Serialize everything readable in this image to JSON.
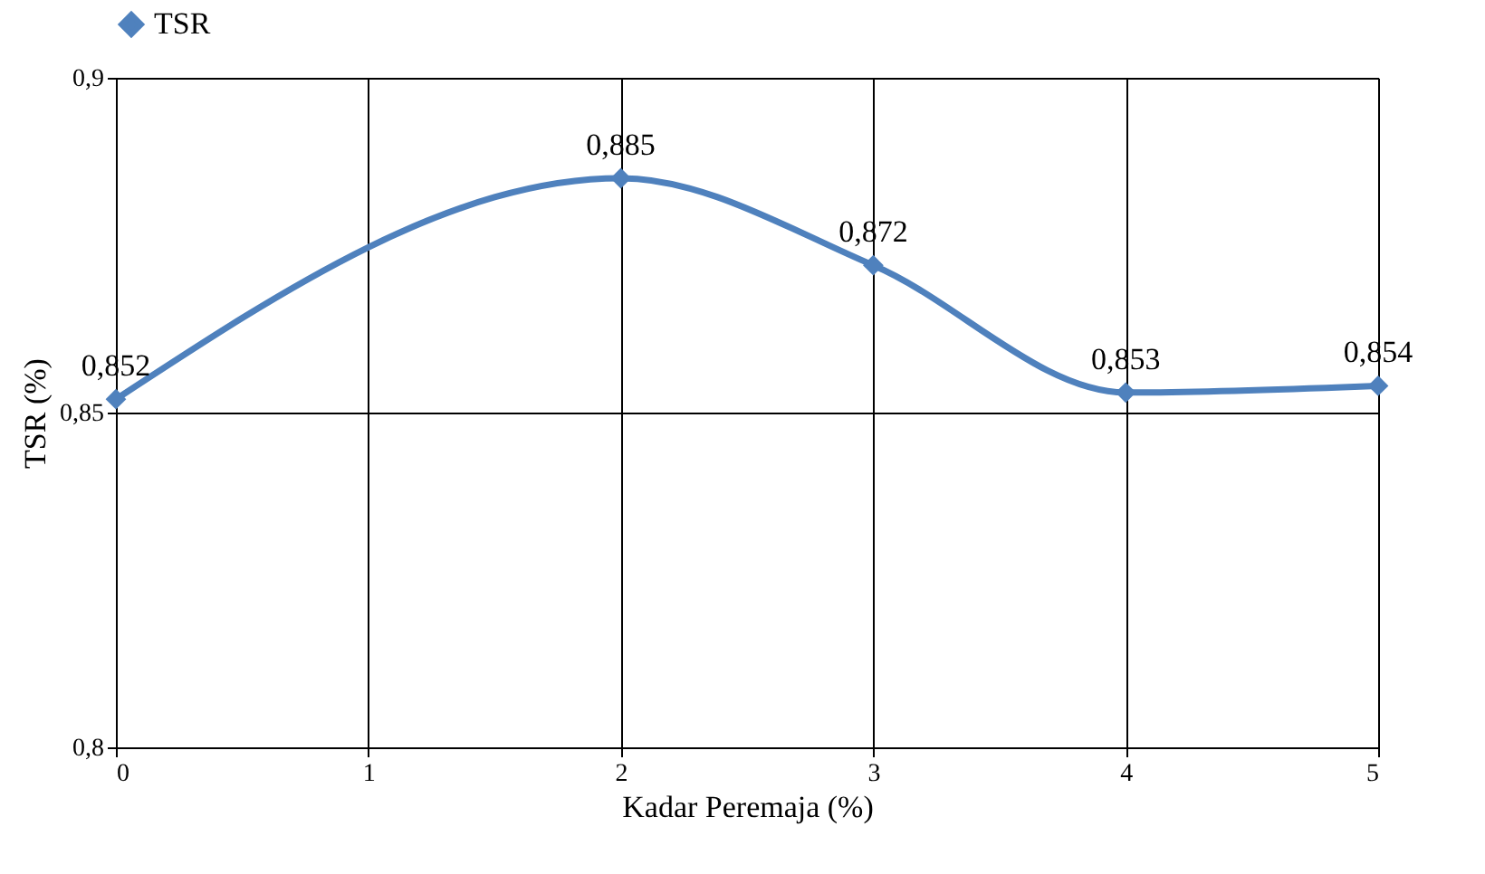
{
  "chart_data": {
    "type": "line",
    "xlabel": "Kadar Peremaja (%)",
    "ylabel": "TSR (%)",
    "xlim": [
      0,
      5
    ],
    "xticks": [
      0,
      1,
      2,
      3,
      4,
      5
    ],
    "ylim": [
      0.8,
      0.9
    ],
    "yticks": [
      {
        "value": 0.8,
        "label": "0,8"
      },
      {
        "value": 0.85,
        "label": "0,85"
      },
      {
        "value": 0.9,
        "label": "0,9"
      }
    ],
    "series": [
      {
        "name": "TSR",
        "color": "#4f81bd",
        "x": [
          0,
          2,
          3,
          4,
          5
        ],
        "values": [
          0.852,
          0.885,
          0.872,
          0.853,
          0.854
        ],
        "value_labels": [
          "0,852",
          "0,885",
          "0,872",
          "0,853",
          "0,854"
        ]
      }
    ],
    "grid": true,
    "legend": "top",
    "marker": "diamond",
    "line_style": "solid"
  }
}
